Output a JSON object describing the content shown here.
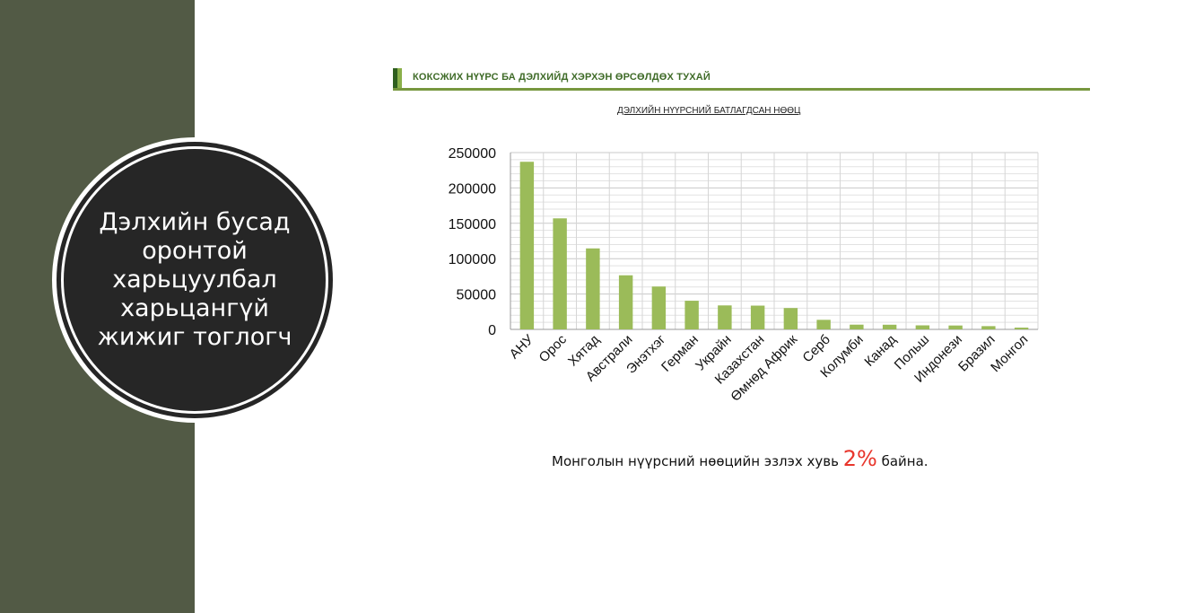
{
  "sidebar": {
    "circle_text": "Дэлхийн бусад оронтой харьцуулбал харьцангүй жижиг тоглогч"
  },
  "header": {
    "title": "КОКСЖИХ НҮҮРС БА ДЭЛХИЙД ХЭРХЭН ӨРСӨЛДӨХ ТУХАЙ"
  },
  "note": {
    "prefix": "Монголын нүүрсний нөөцийн эзлэх хувь",
    "percent": "2%",
    "suffix": "байна."
  },
  "colors": {
    "sidebar": "#525a45",
    "bar": "#9bbb59",
    "accent": "#77973e",
    "percent": "#e8352b"
  },
  "chart_data": {
    "type": "bar",
    "title": "ДЭЛХИЙН НҮҮРСНИЙ БАТЛАГДСАН НӨӨЦ",
    "categories": [
      "АНУ",
      "Орос",
      "Хятад",
      "Австрали",
      "Энэтхэг",
      "Герман",
      "Украйн",
      "Казахстан",
      "Өмнөд Африк",
      "Серб",
      "Колумби",
      "Канад",
      "Польш",
      "Индонези",
      "Бразил",
      "Монгол"
    ],
    "values": [
      237000,
      157000,
      114500,
      76500,
      60600,
      40500,
      33900,
      33600,
      30200,
      13500,
      6700,
      6600,
      5700,
      5500,
      4600,
      2500
    ],
    "ylim": [
      0,
      250000
    ],
    "yticks": [
      "0",
      "50000",
      "100000",
      "150000",
      "200000",
      "250000"
    ],
    "grid": true
  }
}
